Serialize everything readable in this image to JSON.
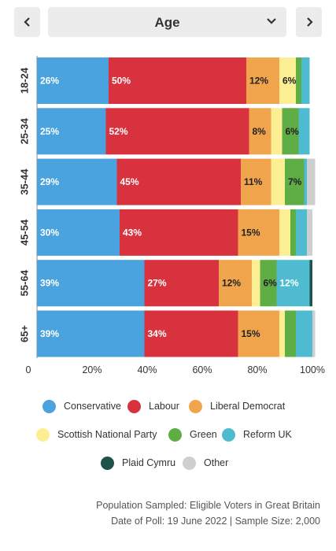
{
  "header": {
    "prev_label": "previous",
    "next_label": "next",
    "selected": "Age"
  },
  "colors": {
    "Conservative": "#4aa3df",
    "Labour": "#d9323f",
    "Liberal Democrat": "#f0a54d",
    "Scottish National Party": "#fcef93",
    "Green": "#5fad45",
    "Reform UK": "#4ebbd0",
    "Plaid Cymru": "#1f5248",
    "Other": "#cfcfcf"
  },
  "chart_data": {
    "type": "bar",
    "orientation": "horizontal",
    "stacked": true,
    "categories": [
      "18-24",
      "25-34",
      "35-44",
      "45-54",
      "55-64",
      "65+"
    ],
    "series": [
      {
        "name": "Conservative",
        "values": [
          26,
          25,
          29,
          30,
          39,
          39
        ]
      },
      {
        "name": "Labour",
        "values": [
          50,
          52,
          45,
          43,
          27,
          34
        ]
      },
      {
        "name": "Liberal Democrat",
        "values": [
          12,
          8,
          11,
          15,
          12,
          15
        ]
      },
      {
        "name": "Scottish National Party",
        "values": [
          6,
          4,
          5,
          4,
          3,
          2
        ]
      },
      {
        "name": "Green",
        "values": [
          2,
          6,
          7,
          2,
          6,
          4
        ]
      },
      {
        "name": "Reform UK",
        "values": [
          3,
          4,
          1,
          4,
          12,
          6
        ]
      },
      {
        "name": "Plaid Cymru",
        "values": [
          0,
          0,
          0,
          0,
          1,
          0
        ]
      },
      {
        "name": "Other",
        "values": [
          0,
          0,
          3,
          2,
          0,
          1
        ]
      }
    ],
    "data_labels": [
      [
        "26%",
        "50%",
        "12%",
        "6%",
        "",
        "",
        "",
        ""
      ],
      [
        "25%",
        "52%",
        "8%",
        "",
        "6%",
        "",
        "",
        ""
      ],
      [
        "29%",
        "45%",
        "11%",
        "",
        "7%",
        "",
        "",
        ""
      ],
      [
        "30%",
        "43%",
        "15%",
        "",
        "",
        "",
        "",
        ""
      ],
      [
        "39%",
        "27%",
        "12%",
        "",
        "6%",
        "12%",
        "",
        ""
      ],
      [
        "39%",
        "34%",
        "15%",
        "",
        "",
        "",
        "",
        ""
      ]
    ],
    "xlim": [
      0,
      100
    ],
    "x_ticks": [
      0,
      20,
      40,
      60,
      80,
      100
    ],
    "x_tick_labels": [
      "0",
      "20%",
      "40%",
      "60%",
      "80%",
      "100%"
    ],
    "legend_position": "bottom"
  },
  "footer": {
    "population": "Population Sampled: Eligible Voters in Great Britain",
    "poll_line": "Date of Poll: 19 June 2022   |   Sample Size: 2,000"
  }
}
